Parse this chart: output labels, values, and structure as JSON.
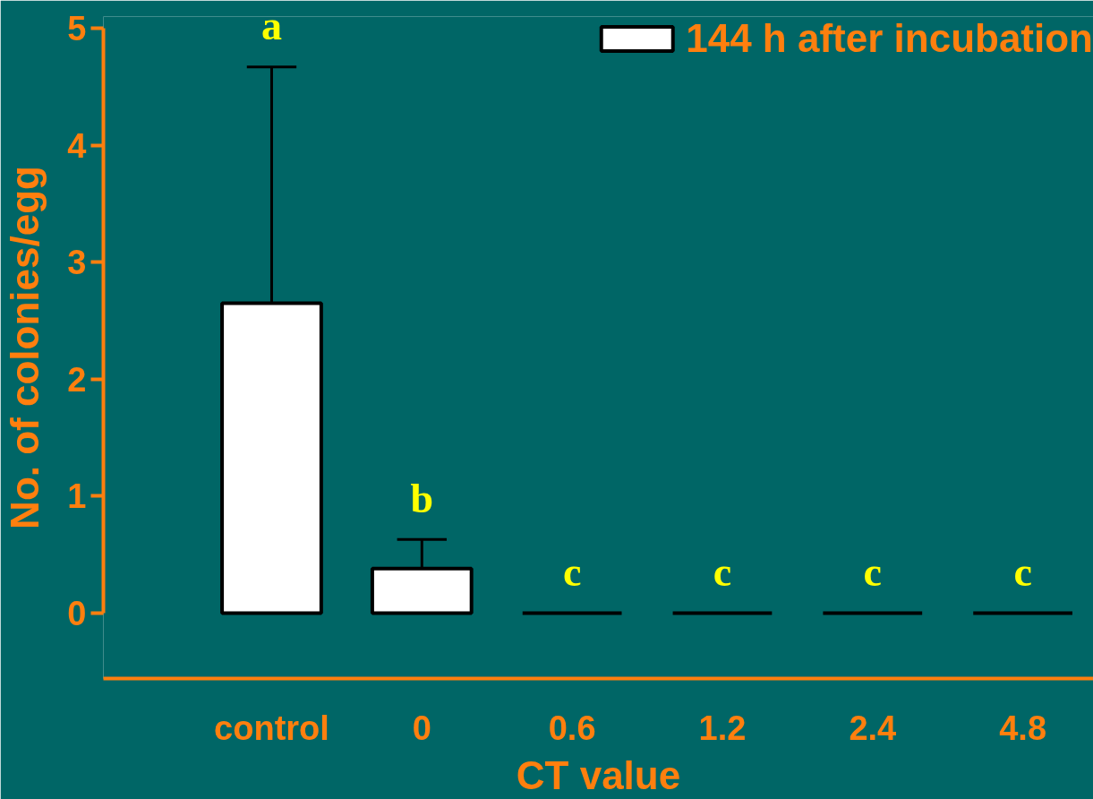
{
  "chart_data": {
    "type": "bar",
    "xlabel": "CT value",
    "ylabel": "No. of colonies/egg",
    "categories": [
      "control",
      "0",
      "0.6",
      "1.2",
      "2.4",
      "4.8"
    ],
    "series": [
      {
        "name": "144 h after incubation",
        "colors": [
          "#ffffff",
          "#ffffff",
          "#000000",
          "#000000",
          "#000000",
          "#000000"
        ],
        "values": [
          2.65,
          0.38,
          0,
          0,
          0,
          0
        ],
        "errors": [
          [
            2.65,
            4.67
          ],
          [
            0.38,
            0.63
          ],
          null,
          null,
          null,
          null
        ]
      }
    ],
    "ylim": [
      0,
      5
    ],
    "yticks": [
      0,
      1,
      2,
      3,
      4,
      5
    ],
    "grid": false,
    "legend": "top right",
    "annotations": [
      "a",
      "b",
      "c",
      "c",
      "c",
      "c"
    ]
  }
}
